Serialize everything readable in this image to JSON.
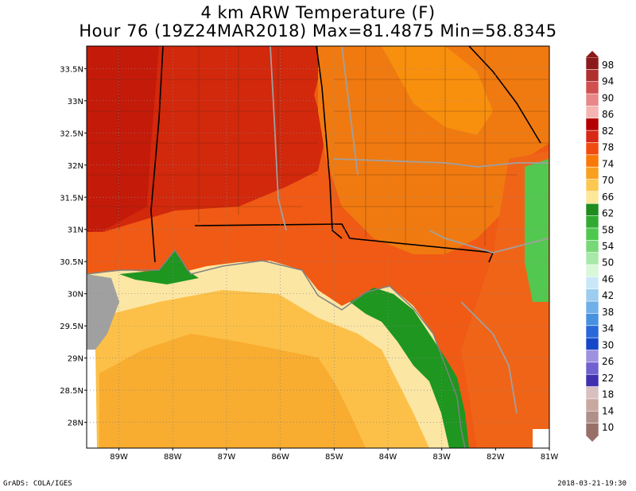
{
  "title": {
    "line1": "4 km ARW Temperature (F)",
    "line2": "Hour 76 (19Z24MAR2018) Max=81.4875 Min=58.8345"
  },
  "map": {
    "lat_labels": [
      "33.5N",
      "33N",
      "32.5N",
      "32N",
      "31.5N",
      "31N",
      "30.5N",
      "30N",
      "29.5N",
      "29N",
      "28.5N",
      "28N"
    ],
    "lon_labels": [
      "89W",
      "88W",
      "87W",
      "86W",
      "85W",
      "84W",
      "83W",
      "82W",
      "81W"
    ],
    "lat_range": [
      27.6,
      33.85
    ],
    "lon_range": [
      -89.6,
      -81.0
    ]
  },
  "colorbar": {
    "labels": [
      "98",
      "94",
      "90",
      "86",
      "82",
      "78",
      "74",
      "70",
      "66",
      "62",
      "58",
      "54",
      "50",
      "46",
      "42",
      "38",
      "34",
      "30",
      "26",
      "22",
      "18",
      "14",
      "10"
    ],
    "colors": [
      "#8b1a1a",
      "#b03030",
      "#d05050",
      "#e88888",
      "#f4b4b4",
      "#b40000",
      "#d82818",
      "#f04c10",
      "#f87808",
      "#f8a020",
      "#fcc850",
      "#fce898",
      "#1e8c1e",
      "#32aa32",
      "#50c850",
      "#78d878",
      "#a8e8a8",
      "#d8f8d8",
      "#c8e8f8",
      "#9ccdf0",
      "#70b0e8",
      "#4890e0",
      "#2868d8",
      "#1448c8",
      "#a090e0",
      "#7060d0",
      "#4030b0",
      "#d8c0c0",
      "#c8a8a0",
      "#b09088",
      "#987068"
    ]
  },
  "colors": {
    "hot_red": "#c81e0c",
    "red": "#e03c10",
    "orange_red": "#f05a14",
    "orange": "#f8820a",
    "light_orange": "#faa024",
    "gold": "#fcc048",
    "pale": "#fce6a4",
    "green": "#1e9620",
    "light_green": "#52c850",
    "land_gray": "#a0a0a0",
    "border": "#000000"
  },
  "footer": {
    "left": "GrADS: COLA/IGES",
    "right": "2018-03-21-19:30"
  }
}
